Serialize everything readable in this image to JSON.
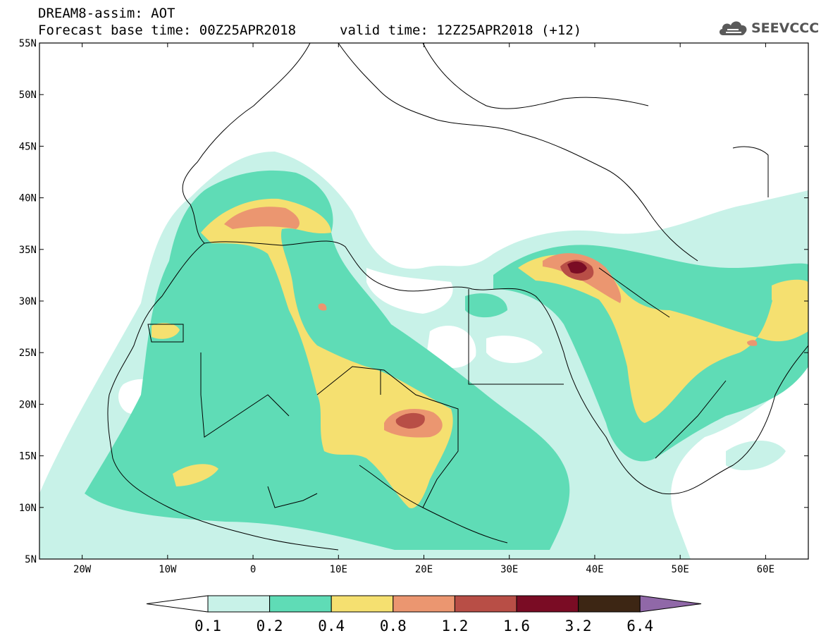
{
  "header": {
    "model_title": "DREAM8-assim: AOT",
    "base_time": "Forecast base time: 00Z25APR2018",
    "valid_time": "valid time: 12Z25APR2018 (+12)"
  },
  "logo": {
    "text": "SEEVCCC",
    "icon": "cloud-logo-icon"
  },
  "map": {
    "lat_labels": [
      "55N",
      "50N",
      "45N",
      "40N",
      "35N",
      "30N",
      "25N",
      "20N",
      "15N",
      "10N",
      "5N"
    ],
    "lon_labels": [
      "20W",
      "10W",
      "0",
      "10E",
      "20E",
      "30E",
      "40E",
      "50E",
      "60E"
    ]
  },
  "colorbar": {
    "labels": [
      "0.1",
      "0.2",
      "0.4",
      "0.8",
      "1.2",
      "1.6",
      "3.2",
      "6.4"
    ],
    "colors": [
      "#ffffff",
      "#c8f2e8",
      "#5fdcb6",
      "#f5e070",
      "#eb9670",
      "#b84e46",
      "#7a0c24",
      "#3d2614",
      "#9068a8"
    ]
  }
}
